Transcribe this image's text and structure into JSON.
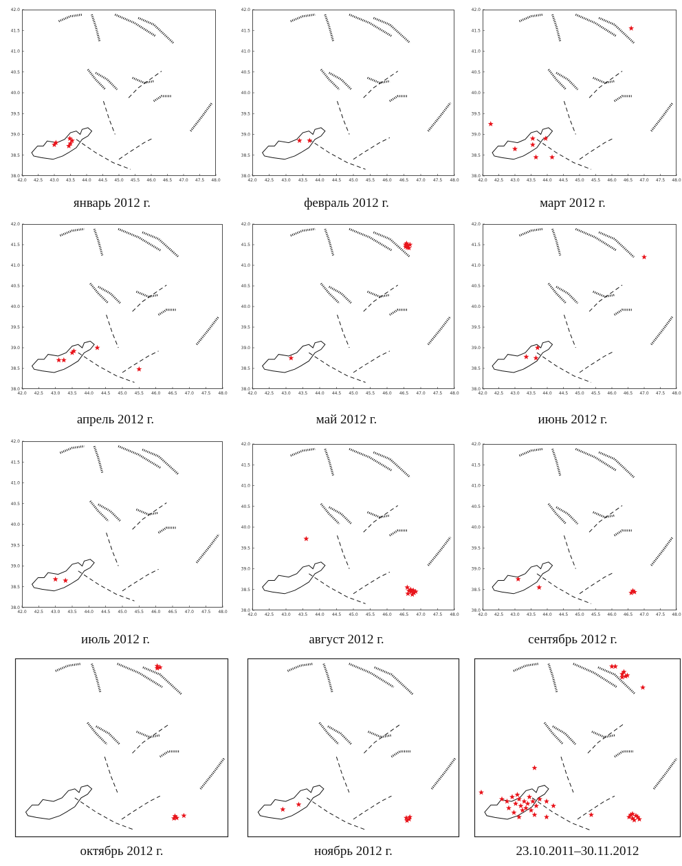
{
  "axes": {
    "x_ticks": [
      "42.0",
      "42.5",
      "43.0",
      "43.5",
      "44.0",
      "44.5",
      "45.0",
      "45.5",
      "46.0",
      "46.5",
      "47.0",
      "47.5",
      "48.0"
    ],
    "y_ticks": [
      "38.0",
      "38.5",
      "39.0",
      "39.5",
      "40.0",
      "40.5",
      "41.0",
      "41.5",
      "42.0"
    ],
    "xlim": [
      42.0,
      48.0
    ],
    "ylim": [
      38.0,
      42.0
    ]
  },
  "colors": {
    "event": "#e8141b",
    "fault": "#111111",
    "frame": "#222222"
  },
  "marker_icon": "red-star-icon",
  "panels": [
    {
      "caption": "январь  2012 г.",
      "show_ticks": true,
      "events": [
        [
          43.0,
          38.75
        ],
        [
          43.05,
          38.8
        ],
        [
          43.45,
          38.72
        ],
        [
          43.5,
          38.78
        ],
        [
          43.55,
          38.85
        ],
        [
          43.48,
          38.9
        ]
      ]
    },
    {
      "caption": "февраль  2012 г.",
      "show_ticks": true,
      "events": [
        [
          43.4,
          38.85
        ],
        [
          43.7,
          38.85
        ]
      ]
    },
    {
      "caption": "март  2012 г.",
      "show_ticks": true,
      "events": [
        [
          42.25,
          39.25
        ],
        [
          43.0,
          38.65
        ],
        [
          43.55,
          38.9
        ],
        [
          43.55,
          38.75
        ],
        [
          43.65,
          38.45
        ],
        [
          43.95,
          38.9
        ],
        [
          44.15,
          38.45
        ],
        [
          46.6,
          41.55
        ]
      ]
    },
    {
      "caption": "апрель  2012 г.",
      "show_ticks": true,
      "events": [
        [
          43.1,
          38.7
        ],
        [
          43.25,
          38.7
        ],
        [
          43.5,
          38.88
        ],
        [
          43.55,
          38.92
        ],
        [
          44.25,
          39.0
        ],
        [
          45.5,
          38.48
        ]
      ]
    },
    {
      "caption": "май  2012 г.",
      "show_ticks": true,
      "events": [
        [
          43.15,
          38.75
        ],
        [
          46.55,
          41.5
        ],
        [
          46.62,
          41.47
        ],
        [
          46.68,
          41.5
        ],
        [
          46.6,
          41.43
        ],
        [
          46.55,
          41.45
        ],
        [
          46.65,
          41.42
        ],
        [
          46.58,
          41.53
        ]
      ]
    },
    {
      "caption": "июнь  2012 г.",
      "show_ticks": true,
      "events": [
        [
          43.35,
          38.78
        ],
        [
          43.65,
          38.75
        ],
        [
          43.7,
          39.0
        ],
        [
          47.0,
          41.2
        ]
      ]
    },
    {
      "caption": "июль 2012 г.",
      "show_ticks": true,
      "events": [
        [
          43.0,
          38.68
        ],
        [
          43.3,
          38.65
        ]
      ]
    },
    {
      "caption": "август 2012 г.",
      "show_ticks": true,
      "events": [
        [
          43.6,
          39.72
        ],
        [
          46.6,
          38.55
        ],
        [
          46.65,
          38.47
        ],
        [
          46.72,
          38.45
        ],
        [
          46.8,
          38.42
        ],
        [
          46.7,
          38.5
        ],
        [
          46.78,
          38.48
        ],
        [
          46.62,
          38.4
        ],
        [
          46.85,
          38.45
        ],
        [
          46.75,
          38.38
        ]
      ]
    },
    {
      "caption": "сентябрь 2012 г.",
      "show_ticks": true,
      "events": [
        [
          43.1,
          38.75
        ],
        [
          43.75,
          38.55
        ],
        [
          46.6,
          38.42
        ],
        [
          46.7,
          38.44
        ],
        [
          46.65,
          38.47
        ]
      ]
    },
    {
      "caption": "октябрь  2012 г.",
      "show_ticks": false,
      "events": [
        [
          46.0,
          41.78
        ],
        [
          46.08,
          41.8
        ],
        [
          46.0,
          41.83
        ],
        [
          46.5,
          38.47
        ],
        [
          46.55,
          38.43
        ],
        [
          46.47,
          38.42
        ],
        [
          46.75,
          38.48
        ]
      ]
    },
    {
      "caption": "ноябрь  2012 г.",
      "show_ticks": false,
      "events": [
        [
          43.0,
          38.62
        ],
        [
          43.45,
          38.73
        ],
        [
          46.5,
          38.43
        ],
        [
          46.58,
          38.4
        ],
        [
          46.52,
          38.37
        ],
        [
          46.6,
          38.45
        ]
      ]
    },
    {
      "caption": "23.10.2011–30.11.2012",
      "show_ticks": false,
      "events": [
        [
          46.0,
          41.82
        ],
        [
          46.1,
          41.82
        ],
        [
          46.3,
          41.65
        ],
        [
          46.4,
          41.6
        ],
        [
          46.35,
          41.7
        ],
        [
          46.45,
          41.62
        ],
        [
          46.3,
          41.58
        ],
        [
          46.9,
          41.35
        ],
        [
          42.2,
          39.0
        ],
        [
          43.75,
          39.55
        ],
        [
          42.8,
          38.85
        ],
        [
          42.95,
          38.8
        ],
        [
          43.1,
          38.9
        ],
        [
          43.2,
          38.75
        ],
        [
          43.3,
          38.85
        ],
        [
          43.35,
          38.7
        ],
        [
          43.45,
          38.8
        ],
        [
          43.5,
          38.65
        ],
        [
          43.55,
          38.75
        ],
        [
          43.6,
          38.9
        ],
        [
          43.25,
          38.95
        ],
        [
          43.4,
          38.6
        ],
        [
          43.65,
          38.6
        ],
        [
          43.7,
          38.8
        ],
        [
          43.15,
          38.55
        ],
        [
          43.8,
          38.7
        ],
        [
          43.0,
          38.65
        ],
        [
          43.9,
          38.85
        ],
        [
          44.1,
          38.8
        ],
        [
          44.3,
          38.7
        ],
        [
          43.3,
          38.45
        ],
        [
          43.75,
          38.5
        ],
        [
          44.1,
          38.45
        ],
        [
          45.4,
          38.5
        ],
        [
          46.5,
          38.45
        ],
        [
          46.6,
          38.42
        ],
        [
          46.55,
          38.5
        ],
        [
          46.7,
          38.48
        ],
        [
          46.65,
          38.38
        ],
        [
          46.75,
          38.45
        ],
        [
          46.8,
          38.4
        ],
        [
          46.6,
          38.52
        ]
      ]
    }
  ]
}
